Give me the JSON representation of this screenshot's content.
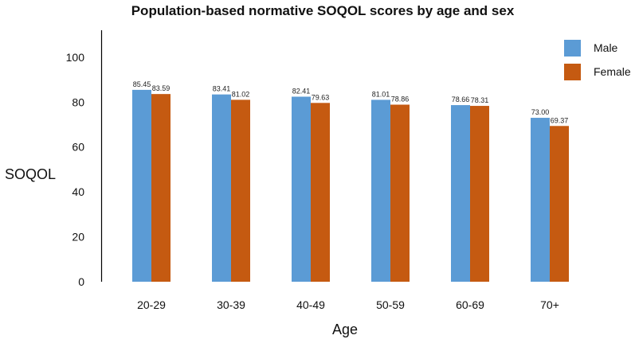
{
  "chart_data": {
    "type": "bar",
    "title": "Population-based normative SOQOL scores by age and sex",
    "xlabel": "Age",
    "ylabel": "SOQOL",
    "categories": [
      "20-29",
      "30-39",
      "40-49",
      "50-59",
      "60-69",
      "70+"
    ],
    "series": [
      {
        "name": "Male",
        "color": "#5b9bd5",
        "values": [
          85.45,
          83.41,
          82.41,
          81.01,
          78.66,
          73.0
        ],
        "labels": [
          "85.45",
          "83.41",
          "82.41",
          "81.01",
          "78.66",
          "73.00"
        ]
      },
      {
        "name": "Female",
        "color": "#c55a11",
        "values": [
          83.59,
          81.02,
          79.63,
          78.86,
          78.31,
          69.37
        ],
        "labels": [
          "83.59",
          "81.02",
          "79.63",
          "78.86",
          "78.31",
          "69.37"
        ]
      }
    ],
    "ylim": [
      0,
      112
    ],
    "yticks": [
      0,
      20,
      40,
      60,
      80,
      100
    ],
    "grid": false,
    "legend_position": "top-right"
  }
}
